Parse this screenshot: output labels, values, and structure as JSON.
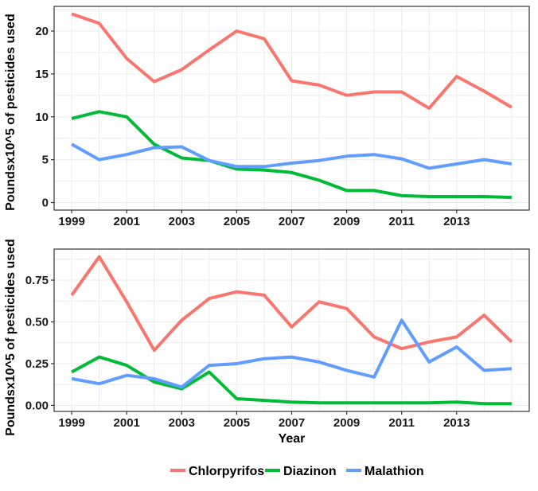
{
  "chart_data": [
    {
      "type": "line",
      "ylabel": "Poundsx10^5 of pesticides used",
      "xlabel": "",
      "xlim": [
        1999,
        2015
      ],
      "ylim": [
        0,
        22
      ],
      "x_ticks": [
        "1999",
        "2001",
        "2003",
        "2005",
        "2007",
        "2009",
        "2011",
        "2013"
      ],
      "y_ticks": [
        "0",
        "5",
        "10",
        "15",
        "20"
      ],
      "grid": true,
      "x": [
        1999,
        2000,
        2001,
        2002,
        2003,
        2004,
        2005,
        2006,
        2007,
        2008,
        2009,
        2010,
        2011,
        2012,
        2013,
        2014,
        2015
      ],
      "series": [
        {
          "name": "Chlorpyrifos",
          "color": "#F8766D",
          "values": [
            22.0,
            20.9,
            16.8,
            14.1,
            15.5,
            17.8,
            20.0,
            19.1,
            14.2,
            13.7,
            12.5,
            12.9,
            12.9,
            11.0,
            14.7,
            13.0,
            11.1
          ]
        },
        {
          "name": "Diazinon",
          "color": "#00BA38",
          "values": [
            9.8,
            10.6,
            10.0,
            6.8,
            5.2,
            4.9,
            3.9,
            3.8,
            3.5,
            2.6,
            1.4,
            1.4,
            0.8,
            0.7,
            0.7,
            0.7,
            0.6
          ]
        },
        {
          "name": "Malathion",
          "color": "#619CFF",
          "values": [
            6.8,
            5.0,
            5.6,
            6.4,
            6.5,
            4.9,
            4.2,
            4.2,
            4.6,
            4.9,
            5.4,
            5.6,
            5.1,
            4.0,
            4.5,
            5.0,
            4.5
          ]
        }
      ]
    },
    {
      "type": "line",
      "ylabel": "Poundsx10^5 of pesticides used",
      "xlabel": "Year",
      "xlim": [
        1999,
        2015
      ],
      "ylim": [
        0,
        0.9
      ],
      "x_ticks": [
        "1999",
        "2001",
        "2003",
        "2005",
        "2007",
        "2009",
        "2011",
        "2013"
      ],
      "y_ticks": [
        "0.00",
        "0.25",
        "0.50",
        "0.75"
      ],
      "grid": true,
      "x": [
        1999,
        2000,
        2001,
        2002,
        2003,
        2004,
        2005,
        2006,
        2007,
        2008,
        2009,
        2010,
        2011,
        2012,
        2013,
        2014,
        2015
      ],
      "series": [
        {
          "name": "Chlorpyrifos",
          "color": "#F8766D",
          "values": [
            0.66,
            0.89,
            0.62,
            0.33,
            0.51,
            0.64,
            0.68,
            0.66,
            0.47,
            0.62,
            0.58,
            0.41,
            0.34,
            0.38,
            0.41,
            0.54,
            0.38
          ]
        },
        {
          "name": "Diazinon",
          "color": "#00BA38",
          "values": [
            0.2,
            0.29,
            0.24,
            0.14,
            0.1,
            0.2,
            0.04,
            0.03,
            0.02,
            0.015,
            0.015,
            0.015,
            0.015,
            0.015,
            0.02,
            0.01,
            0.01
          ]
        },
        {
          "name": "Malathion",
          "color": "#619CFF",
          "values": [
            0.16,
            0.13,
            0.18,
            0.16,
            0.11,
            0.24,
            0.25,
            0.28,
            0.29,
            0.26,
            0.21,
            0.17,
            0.51,
            0.26,
            0.35,
            0.21,
            0.22
          ]
        }
      ]
    }
  ],
  "legend": {
    "position": "bottom",
    "items": [
      {
        "label": "Chlorpyrifos",
        "color": "#F8766D"
      },
      {
        "label": "Diazinon",
        "color": "#00BA38"
      },
      {
        "label": "Malathion",
        "color": "#619CFF"
      }
    ]
  }
}
